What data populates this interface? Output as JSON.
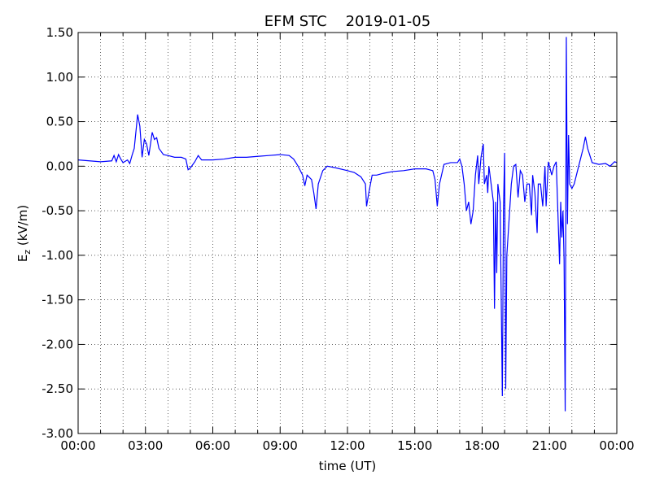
{
  "chart_data": {
    "type": "line",
    "title": "EFM STC    2019-01-05",
    "xlabel": "time (UT)",
    "ylabel": {
      "base": "E",
      "sub": "z",
      "unit": " (kV/m)"
    },
    "xlim": [
      0,
      24
    ],
    "xticks": [
      {
        "value": 0,
        "label": "00:00"
      },
      {
        "value": 3,
        "label": "03:00"
      },
      {
        "value": 6,
        "label": "06:00"
      },
      {
        "value": 9,
        "label": "09:00"
      },
      {
        "value": 12,
        "label": "12:00"
      },
      {
        "value": 15,
        "label": "15:00"
      },
      {
        "value": 18,
        "label": "18:00"
      },
      {
        "value": 21,
        "label": "21:00"
      },
      {
        "value": 24,
        "label": "00:00"
      }
    ],
    "xminorticks": [
      1,
      2,
      4,
      5,
      7,
      8,
      10,
      11,
      13,
      14,
      16,
      17,
      19,
      20,
      22,
      23
    ],
    "ylim": [
      -3,
      1.5
    ],
    "yticks": [
      {
        "value": -3,
        "label": "-3.00"
      },
      {
        "value": -2.5,
        "label": "-2.50"
      },
      {
        "value": -2,
        "label": "-2.00"
      },
      {
        "value": -1.5,
        "label": "-1.50"
      },
      {
        "value": -1,
        "label": "-1.00"
      },
      {
        "value": -0.5,
        "label": "-0.50"
      },
      {
        "value": 0,
        "label": "0.00"
      },
      {
        "value": 0.5,
        "label": "0.50"
      },
      {
        "value": 1,
        "label": "1.00"
      },
      {
        "value": 1.5,
        "label": "1.50"
      }
    ],
    "grid": true,
    "series": [
      {
        "color": "#0000ff",
        "x": [
          0,
          0.5,
          1.0,
          1.5,
          1.6,
          1.7,
          1.8,
          1.9,
          2.0,
          2.2,
          2.3,
          2.4,
          2.5,
          2.6,
          2.65,
          2.75,
          2.85,
          2.95,
          3.05,
          3.15,
          3.3,
          3.4,
          3.5,
          3.6,
          3.8,
          4.0,
          4.3,
          4.6,
          4.8,
          4.9,
          5.0,
          5.2,
          5.35,
          5.5,
          6.0,
          6.5,
          7.0,
          7.5,
          8.0,
          8.5,
          9.0,
          9.4,
          9.6,
          9.8,
          10.0,
          10.1,
          10.2,
          10.4,
          10.5,
          10.6,
          10.7,
          10.9,
          11.1,
          11.5,
          12.0,
          12.3,
          12.6,
          12.8,
          12.85,
          12.95,
          13.1,
          13.3,
          13.6,
          14.0,
          14.5,
          15.0,
          15.5,
          15.8,
          15.9,
          16.0,
          16.1,
          16.3,
          16.6,
          16.9,
          17.0,
          17.1,
          17.2,
          17.3,
          17.4,
          17.5,
          17.6,
          17.7,
          17.8,
          17.85,
          17.95,
          18.05,
          18.1,
          18.2,
          18.25,
          18.3,
          18.4,
          18.5,
          18.55,
          18.6,
          18.65,
          18.7,
          18.8,
          18.9,
          18.95,
          19.0,
          19.05,
          19.1,
          19.2,
          19.3,
          19.4,
          19.5,
          19.6,
          19.7,
          19.8,
          19.9,
          20.0,
          20.1,
          20.2,
          20.25,
          20.35,
          20.45,
          20.5,
          20.6,
          20.7,
          20.8,
          20.85,
          20.9,
          20.95,
          21.1,
          21.2,
          21.3,
          21.45,
          21.5,
          21.55,
          21.6,
          21.65,
          21.7,
          21.75,
          21.8,
          21.85,
          21.9,
          22.0,
          22.1,
          22.3,
          22.5,
          22.6,
          22.7,
          22.9,
          23.2,
          23.5,
          23.7,
          23.9,
          24.0
        ],
        "values": [
          0.07,
          0.06,
          0.05,
          0.06,
          0.12,
          0.05,
          0.13,
          0.08,
          0.04,
          0.07,
          0.03,
          0.12,
          0.2,
          0.45,
          0.58,
          0.45,
          0.1,
          0.3,
          0.25,
          0.12,
          0.38,
          0.3,
          0.32,
          0.2,
          0.13,
          0.12,
          0.1,
          0.1,
          0.08,
          -0.04,
          -0.02,
          0.05,
          0.12,
          0.07,
          0.07,
          0.08,
          0.1,
          0.1,
          0.11,
          0.12,
          0.13,
          0.12,
          0.08,
          0.0,
          -0.1,
          -0.22,
          -0.1,
          -0.15,
          -0.3,
          -0.48,
          -0.2,
          -0.05,
          0.0,
          -0.02,
          -0.05,
          -0.07,
          -0.12,
          -0.2,
          -0.45,
          -0.3,
          -0.1,
          -0.1,
          -0.08,
          -0.06,
          -0.05,
          -0.03,
          -0.03,
          -0.05,
          -0.15,
          -0.45,
          -0.2,
          0.02,
          0.04,
          0.04,
          0.08,
          0.0,
          -0.2,
          -0.5,
          -0.4,
          -0.65,
          -0.5,
          -0.1,
          0.12,
          -0.2,
          0.1,
          0.25,
          -0.2,
          -0.1,
          -0.3,
          0.0,
          -0.2,
          -0.4,
          -1.6,
          -0.4,
          -1.2,
          -0.2,
          -0.4,
          -2.58,
          -0.5,
          0.15,
          -2.5,
          -1.0,
          -0.6,
          -0.2,
          0.0,
          0.02,
          -0.35,
          -0.05,
          -0.1,
          -0.4,
          -0.2,
          -0.2,
          -0.55,
          -0.1,
          -0.3,
          -0.75,
          -0.2,
          -0.2,
          -0.45,
          0.0,
          -0.45,
          -0.2,
          0.05,
          -0.1,
          0.0,
          0.05,
          -1.1,
          -0.4,
          -0.8,
          -0.5,
          -1.05,
          -2.75,
          1.45,
          -0.65,
          0.35,
          -0.2,
          -0.25,
          -0.2,
          0.0,
          0.2,
          0.33,
          0.2,
          0.04,
          0.02,
          0.03,
          0.0,
          0.05,
          0.04
        ]
      }
    ]
  }
}
